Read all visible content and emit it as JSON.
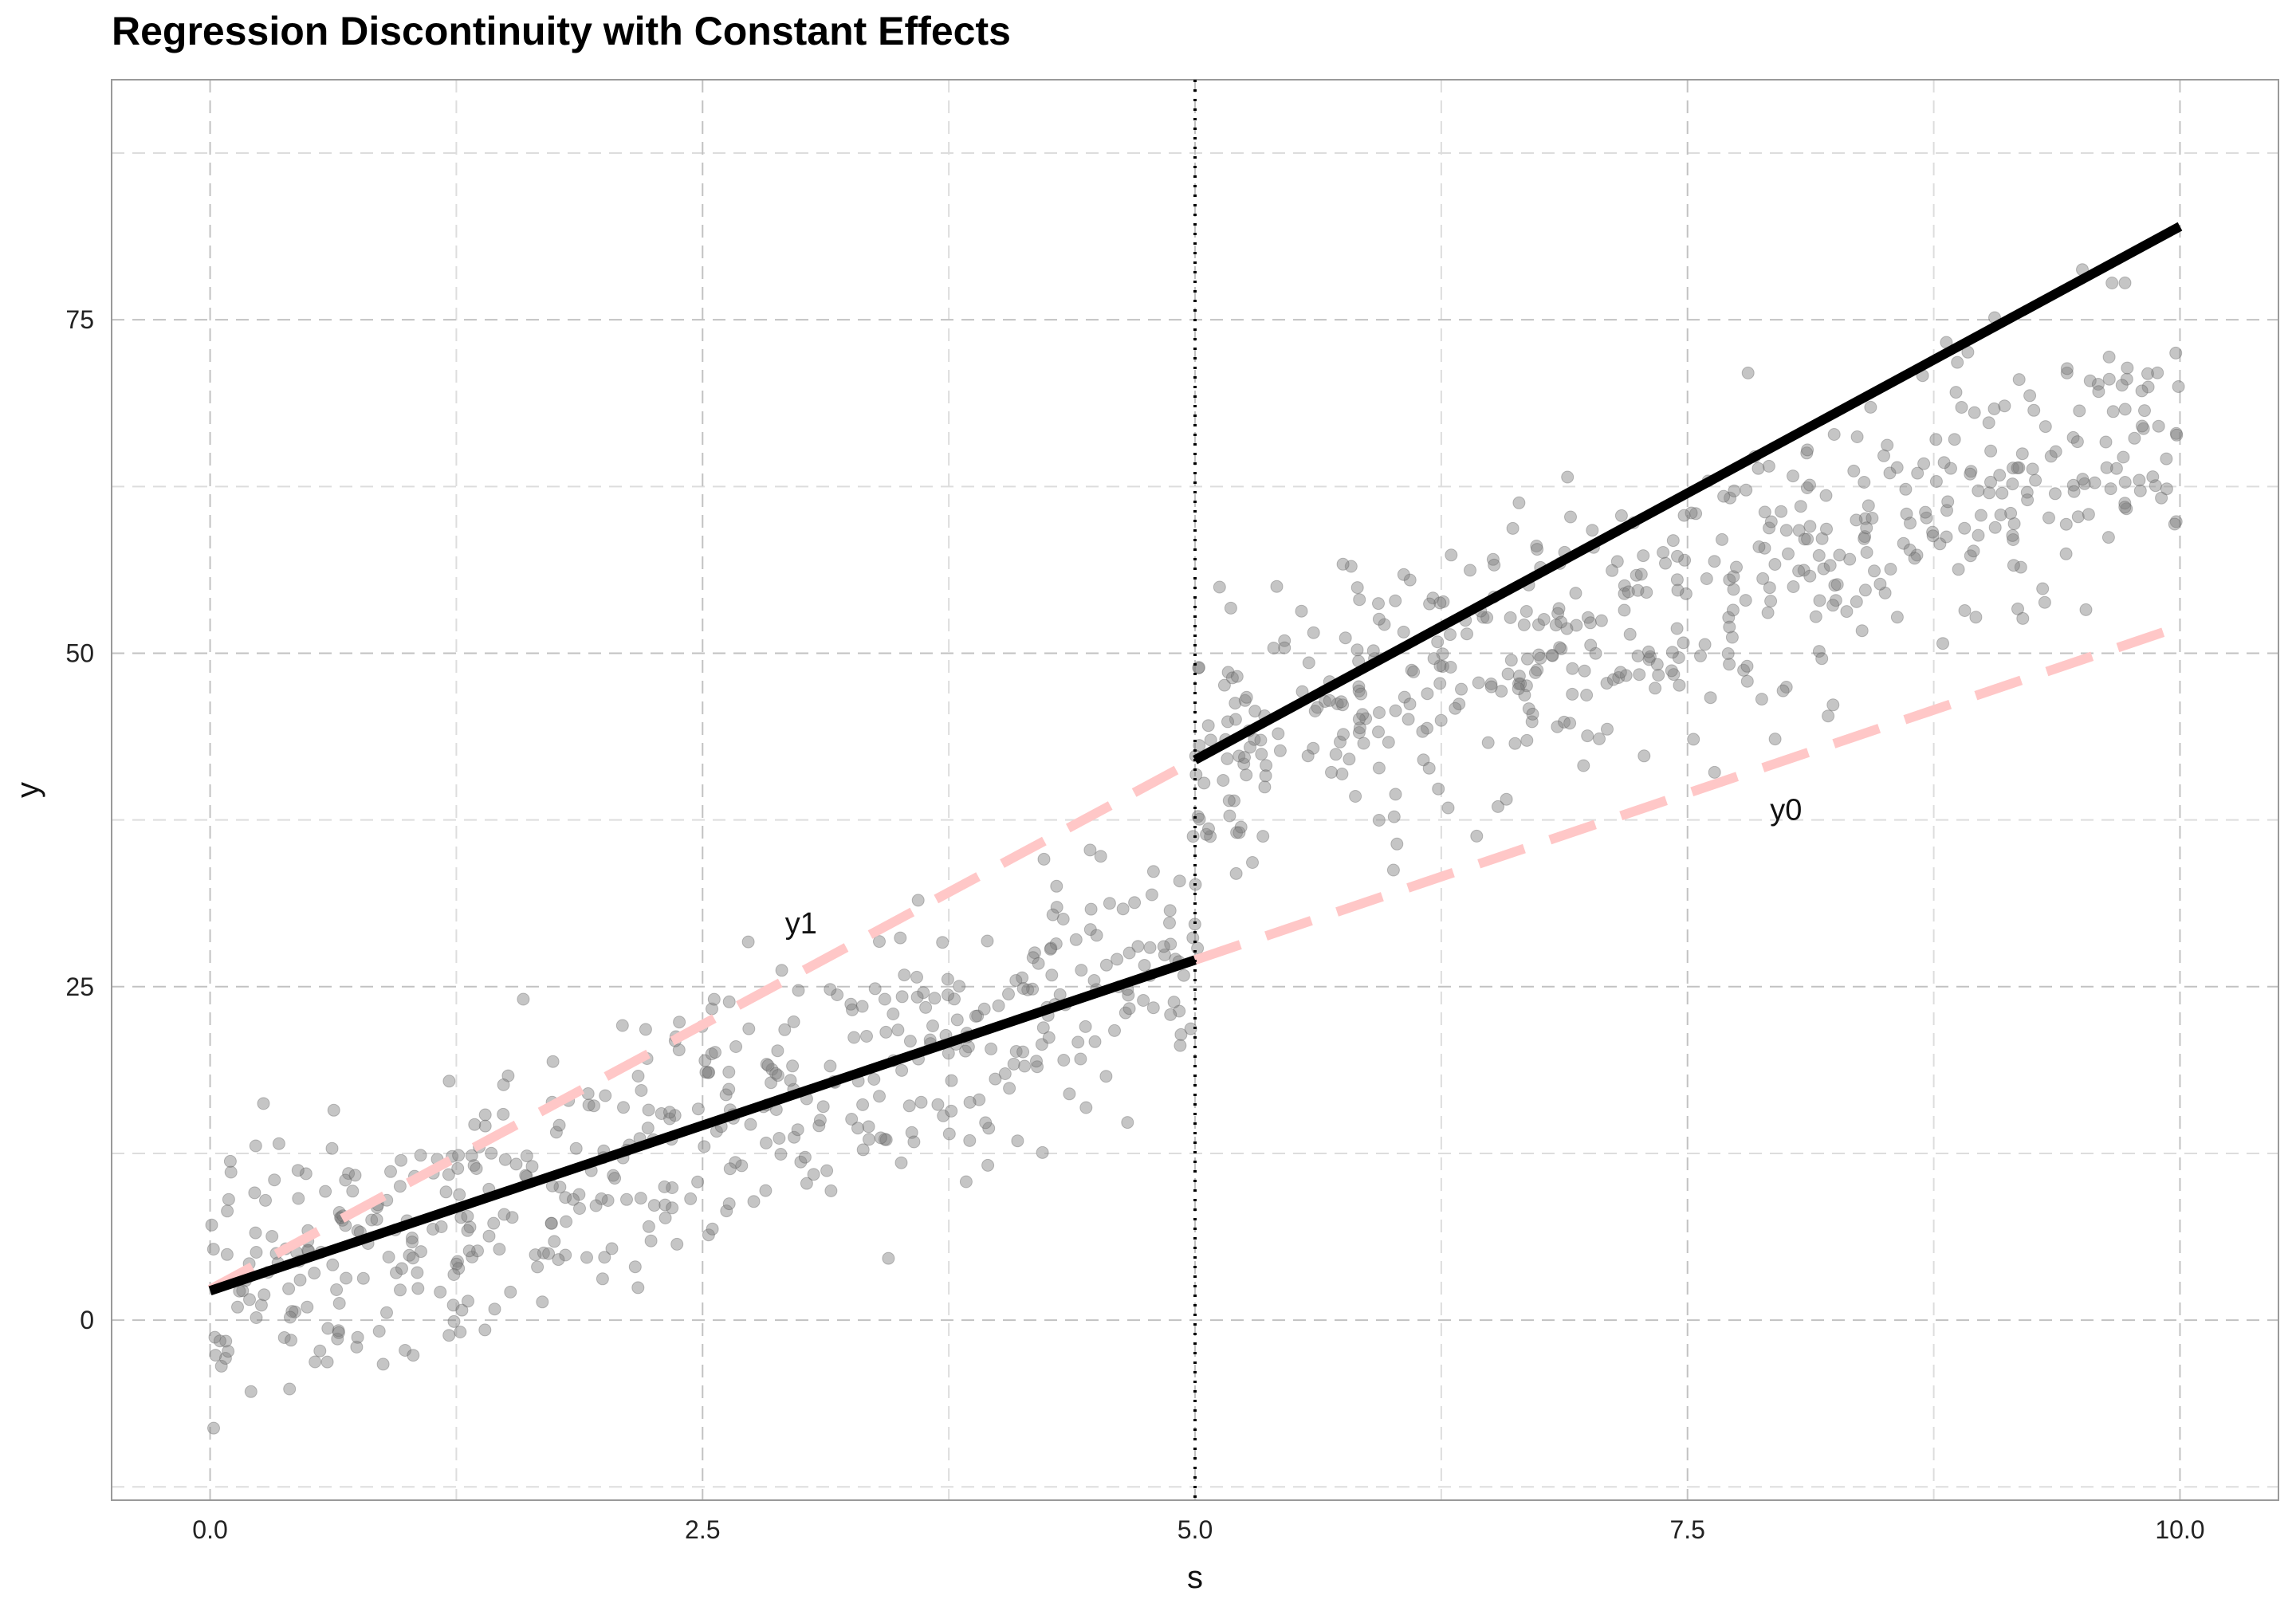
{
  "chart_data": {
    "type": "scatter",
    "title": "Regression Discontinuity with Constant Effects",
    "xlabel": "s",
    "ylabel": "y",
    "xlim": [
      -0.5,
      10.5
    ],
    "ylim": [
      -13.5,
      93
    ],
    "x_ticks": [
      0.0,
      2.5,
      5.0,
      7.5,
      10.0
    ],
    "x_tick_labels": [
      "0.0",
      "2.5",
      "5.0",
      "7.5",
      "10.0"
    ],
    "y_ticks": [
      0,
      25,
      50,
      75
    ],
    "y_tick_labels": [
      "0",
      "25",
      "50",
      "75"
    ],
    "grid": true,
    "cutoff": 5.0,
    "series": [
      {
        "name": "",
        "kind": "scatter",
        "color": "#7f7f7f",
        "seed": 20240601,
        "n_points": 1000,
        "x_range": [
          0,
          10
        ],
        "description": "y = 2 + 5*s + 15*(s>=5) + noise(sd 5)"
      },
      {
        "name": "fit_below",
        "kind": "line",
        "color": "#000000",
        "style": "solid",
        "x": [
          0,
          5
        ],
        "y": [
          2.2,
          27
        ]
      },
      {
        "name": "fit_above",
        "kind": "line",
        "color": "#000000",
        "style": "solid",
        "x": [
          5,
          10
        ],
        "y": [
          42,
          82
        ]
      },
      {
        "name": "y1",
        "kind": "line",
        "color": "#ffc7c7",
        "style": "dashed",
        "x": [
          0,
          5
        ],
        "y": [
          2.3,
          42
        ]
      },
      {
        "name": "y0",
        "kind": "line",
        "color": "#ffc7c7",
        "style": "dashed",
        "x": [
          5,
          10
        ],
        "y": [
          27,
          52
        ]
      }
    ],
    "annotations": [
      {
        "text": "y1",
        "x": 3.0,
        "y": 29
      },
      {
        "text": "y0",
        "x": 8.0,
        "y": 37.5
      }
    ]
  }
}
